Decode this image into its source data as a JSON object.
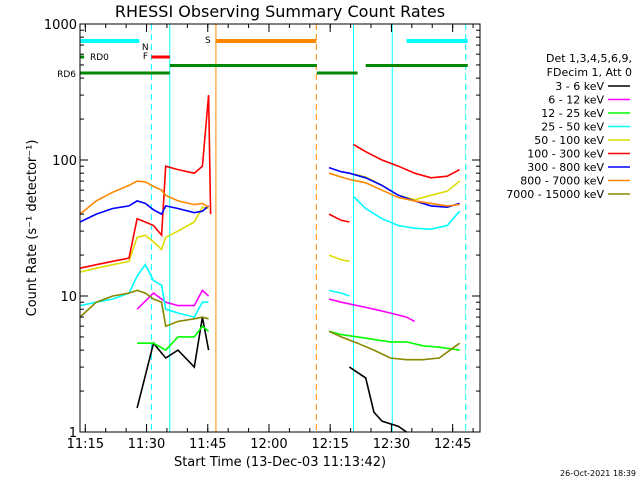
{
  "chart_data": {
    "type": "line",
    "title": "RHESSI Observing Summary Count Rates",
    "xlabel": "Start Time (13-Dec-03 11:13:42)",
    "ylabel": "Count Rate (s⁻¹ detector⁻¹)",
    "yscale": "log",
    "ylim": [
      1,
      1000
    ],
    "xlim_minutes": [
      0,
      98
    ],
    "x_ticks": [
      {
        "m": 1.3,
        "label": "11:15"
      },
      {
        "m": 16.3,
        "label": "11:30"
      },
      {
        "m": 31.3,
        "label": "11:45"
      },
      {
        "m": 46.3,
        "label": "12:00"
      },
      {
        "m": 61.3,
        "label": "12:15"
      },
      {
        "m": 76.3,
        "label": "12:30"
      },
      {
        "m": 91.3,
        "label": "12:45"
      }
    ],
    "y_ticks": [
      {
        "v": 1,
        "label": "1"
      },
      {
        "v": 10,
        "label": "10"
      },
      {
        "v": 100,
        "label": "100"
      },
      {
        "v": 1000,
        "label": "1000"
      }
    ],
    "legend_header": [
      "Det 1,3,4,5,6,9,",
      "FDecim 1, Att 0"
    ],
    "legend_position": "right",
    "series": [
      {
        "name": "3 - 6 keV",
        "color": "#000000",
        "segments": [
          [
            [
              14,
              1.5
            ],
            [
              18,
              4.5
            ],
            [
              21,
              3.5
            ],
            [
              24,
              4.0
            ],
            [
              28,
              3.0
            ],
            [
              30,
              7.0
            ],
            [
              31.5,
              4.0
            ]
          ],
          [
            [
              66,
              3.0
            ],
            [
              70,
              2.5
            ],
            [
              72,
              1.4
            ],
            [
              74,
              1.2
            ],
            [
              78,
              1.1
            ],
            [
              80,
              1.0
            ]
          ]
        ]
      },
      {
        "name": "6 - 12 keV",
        "color": "#ff00ff",
        "segments": [
          [
            [
              14,
              8.0
            ],
            [
              18,
              10.5
            ],
            [
              21,
              9.0
            ],
            [
              24,
              8.5
            ],
            [
              28,
              8.5
            ],
            [
              30,
              11.0
            ],
            [
              31.5,
              10.0
            ]
          ],
          [
            [
              61,
              9.5
            ],
            [
              64,
              9.0
            ],
            [
              68,
              8.5
            ],
            [
              72,
              8.0
            ],
            [
              76,
              7.5
            ],
            [
              80,
              7.0
            ],
            [
              82,
              6.5
            ]
          ]
        ]
      },
      {
        "name": "12 - 25 keV",
        "color": "#00ff00",
        "segments": [
          [
            [
              14,
              4.5
            ],
            [
              18,
              4.5
            ],
            [
              21,
              4.0
            ],
            [
              24,
              5.0
            ],
            [
              28,
              5.0
            ],
            [
              30,
              6.0
            ],
            [
              31.5,
              5.5
            ]
          ],
          [
            [
              61,
              5.5
            ],
            [
              64,
              5.2
            ],
            [
              68,
              5.0
            ],
            [
              72,
              4.8
            ],
            [
              76,
              4.6
            ],
            [
              80,
              4.6
            ],
            [
              84,
              4.3
            ],
            [
              88,
              4.2
            ],
            [
              93,
              4.0
            ]
          ]
        ]
      },
      {
        "name": "25 - 50 keV",
        "color": "#00ffff",
        "segments": [
          [
            [
              0,
              8.5
            ],
            [
              4,
              9.0
            ],
            [
              8,
              9.5
            ],
            [
              12,
              10.5
            ],
            [
              14,
              14.0
            ],
            [
              16,
              17.0
            ],
            [
              18,
              13.0
            ],
            [
              20,
              12.0
            ],
            [
              21,
              8.0
            ],
            [
              24,
              7.5
            ],
            [
              28,
              7.0
            ],
            [
              30,
              9.0
            ],
            [
              31.5,
              9.0
            ]
          ],
          [
            [
              61,
              11.0
            ],
            [
              64,
              10.5
            ],
            [
              66,
              10.0
            ]
          ],
          [
            [
              67,
              54.0
            ],
            [
              70,
              44.0
            ],
            [
              74,
              37.0
            ],
            [
              78,
              33.0
            ],
            [
              82,
              31.5
            ],
            [
              86,
              31.0
            ],
            [
              90,
              33.0
            ],
            [
              93,
              42.0
            ]
          ]
        ]
      },
      {
        "name": "50 - 100 keV",
        "color": "#dddd00",
        "segments": [
          [
            [
              0,
              15.0
            ],
            [
              4,
              16.0
            ],
            [
              8,
              17.0
            ],
            [
              12,
              18.0
            ],
            [
              14,
              27.0
            ],
            [
              16,
              28.0
            ],
            [
              18,
              25.0
            ],
            [
              20,
              22.0
            ],
            [
              21,
              27.0
            ],
            [
              24,
              30.0
            ],
            [
              28,
              35.0
            ],
            [
              30,
              45.0
            ],
            [
              31.5,
              44.0
            ]
          ],
          [
            [
              61,
              20.0
            ],
            [
              64,
              18.5
            ],
            [
              66,
              18.0
            ]
          ],
          [
            [
              67,
              79.0
            ],
            [
              70,
              75.0
            ],
            [
              74,
              65.0
            ],
            [
              78,
              55.0
            ],
            [
              82,
              51.0
            ],
            [
              86,
              55.0
            ],
            [
              90,
              59.0
            ],
            [
              93,
              70.0
            ]
          ]
        ]
      },
      {
        "name": "100 - 300 keV",
        "color": "#ff0000",
        "segments": [
          [
            [
              0,
              16.0
            ],
            [
              4,
              17.0
            ],
            [
              8,
              18.0
            ],
            [
              12,
              19.0
            ],
            [
              14,
              37.0
            ],
            [
              16,
              35.0
            ],
            [
              18,
              33.0
            ],
            [
              20,
              28.0
            ],
            [
              21,
              90.0
            ],
            [
              24,
              85.0
            ],
            [
              28,
              80.0
            ],
            [
              30,
              90.0
            ],
            [
              31.5,
              300.0
            ],
            [
              32,
              40.0
            ]
          ],
          [
            [
              61,
              40.0
            ],
            [
              64,
              36.0
            ],
            [
              66,
              35.0
            ]
          ],
          [
            [
              67,
              130.0
            ],
            [
              70,
              115.0
            ],
            [
              74,
              100.0
            ],
            [
              78,
              90.0
            ],
            [
              82,
              80.0
            ],
            [
              86,
              74.0
            ],
            [
              90,
              76.0
            ],
            [
              93,
              85.0
            ]
          ]
        ]
      },
      {
        "name": "300 - 800 keV",
        "color": "#0000ff",
        "segments": [
          [
            [
              0,
              35.0
            ],
            [
              4,
              40.0
            ],
            [
              8,
              44.0
            ],
            [
              12,
              46.0
            ],
            [
              14,
              50.0
            ],
            [
              16,
              48.0
            ],
            [
              18,
              43.0
            ],
            [
              20,
              40.0
            ],
            [
              21,
              46.0
            ],
            [
              24,
              44.0
            ],
            [
              28,
              41.0
            ],
            [
              30,
              42.0
            ],
            [
              31.5,
              46.0
            ]
          ],
          [
            [
              61,
              88.0
            ],
            [
              64,
              82.0
            ],
            [
              66,
              80.0
            ],
            [
              70,
              74.0
            ],
            [
              74,
              65.0
            ],
            [
              78,
              55.0
            ],
            [
              82,
              50.0
            ],
            [
              86,
              46.0
            ],
            [
              90,
              45.0
            ],
            [
              93,
              48.0
            ]
          ]
        ]
      },
      {
        "name": "800 - 7000 keV",
        "color": "#ff8800",
        "segments": [
          [
            [
              0,
              40.0
            ],
            [
              4,
              50.0
            ],
            [
              8,
              58.0
            ],
            [
              12,
              65.0
            ],
            [
              14,
              70.0
            ],
            [
              16,
              69.0
            ],
            [
              18,
              64.0
            ],
            [
              20,
              60.0
            ],
            [
              21,
              55.0
            ],
            [
              24,
              50.0
            ],
            [
              28,
              47.0
            ],
            [
              30,
              48.0
            ],
            [
              31.5,
              45.0
            ]
          ],
          [
            [
              61,
              80.0
            ],
            [
              64,
              75.0
            ],
            [
              66,
              72.0
            ],
            [
              70,
              68.0
            ],
            [
              74,
              60.0
            ],
            [
              78,
              53.0
            ],
            [
              82,
              50.0
            ],
            [
              86,
              48.0
            ],
            [
              90,
              46.0
            ],
            [
              93,
              47.0
            ]
          ]
        ]
      },
      {
        "name": "7000 - 15000 keV",
        "color": "#888800",
        "segments": [
          [
            [
              0,
              7.0
            ],
            [
              4,
              9.0
            ],
            [
              8,
              10.0
            ],
            [
              12,
              10.5
            ],
            [
              14,
              11.0
            ],
            [
              16,
              10.5
            ],
            [
              18,
              9.5
            ],
            [
              20,
              9.0
            ],
            [
              21,
              6.0
            ],
            [
              24,
              6.5
            ],
            [
              28,
              6.8
            ],
            [
              30,
              7.0
            ],
            [
              31.5,
              6.8
            ]
          ],
          [
            [
              61,
              5.5
            ],
            [
              64,
              5.0
            ],
            [
              68,
              4.5
            ],
            [
              72,
              4.0
            ],
            [
              76,
              3.5
            ],
            [
              80,
              3.4
            ],
            [
              84,
              3.4
            ],
            [
              88,
              3.5
            ],
            [
              93,
              4.5
            ]
          ]
        ]
      }
    ],
    "flag_bars": [
      {
        "label": "N",
        "color": "#00ffff",
        "level": "top",
        "ranges": [
          [
            0,
            14.5
          ],
          [
            80,
            95
          ]
        ]
      },
      {
        "label": "F",
        "color": "#ff0000",
        "level": "upper",
        "ranges": [
          [
            17.5,
            22
          ]
        ]
      },
      {
        "label": "S",
        "color": "#ff8800",
        "level": "top",
        "ranges": [
          [
            33.3,
            57.9
          ]
        ]
      },
      {
        "label": "RD0",
        "color": "#008800",
        "level": "upper",
        "ranges": [
          [
            0,
            1
          ]
        ]
      },
      {
        "label": "RD6",
        "color": "#008800",
        "level": "lower",
        "ranges": [
          [
            0,
            22
          ],
          [
            58,
            68
          ]
        ]
      }
    ],
    "gap_line_top": {
      "color": "#008800",
      "ranges": [
        [
          22,
          58
        ],
        [
          70,
          95
        ]
      ]
    },
    "vlines": [
      {
        "m": 0,
        "color": "#00ffff",
        "style": "solid"
      },
      {
        "m": 17.5,
        "color": "#00ffff",
        "style": "dashed"
      },
      {
        "m": 22,
        "color": "#00ffff",
        "style": "solid"
      },
      {
        "m": 33.3,
        "color": "#ff8800",
        "style": "solid"
      },
      {
        "m": 57.9,
        "color": "#ff8800",
        "style": "dashed"
      },
      {
        "m": 67,
        "color": "#00ffff",
        "style": "solid"
      },
      {
        "m": 76.5,
        "color": "#00ffff",
        "style": "solid"
      },
      {
        "m": 94.5,
        "color": "#00ffff",
        "style": "dashed"
      }
    ],
    "timestamp": "26-Oct-2021 18:39"
  }
}
